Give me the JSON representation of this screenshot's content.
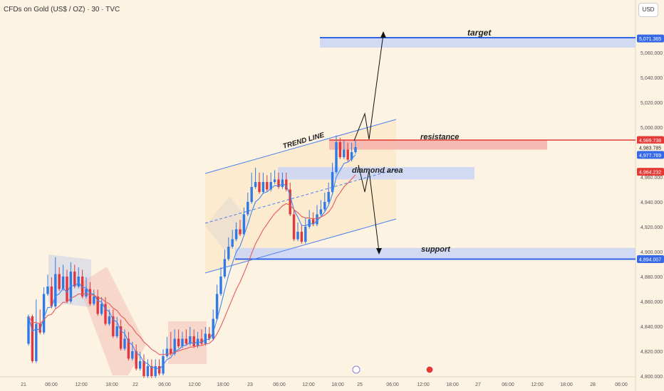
{
  "header": {
    "symbol_title": "CFDs on Gold (US$ / OZ) · 30 · TVC",
    "currency_button": "USD"
  },
  "colors": {
    "background": "#fdf3e3",
    "up_candle": "#2f7ae6",
    "down_candle": "#e0383e",
    "ema_fast": "#3f86f0",
    "ema_slow": "#e55b5b",
    "channel": "#4a7ff0",
    "resistance": "#e53935",
    "support": "#3064ea",
    "zone_fill": "#cdd6f4",
    "resistance_fill": "#f4b1ab",
    "tag_blue": "#3669e8",
    "tag_red": "#e53935"
  },
  "chart_data": {
    "type": "candlestick",
    "title": "CFDs on Gold (US$ / OZ) · 30 · TVC",
    "interval": "30",
    "ylim": [
      4800,
      5080
    ],
    "yticks": [
      "5,060.000",
      "5,040.000",
      "5,020.000",
      "5,000.000",
      "4,960.000",
      "4,940.000",
      "4,920.000",
      "4,900.000",
      "4,880.000",
      "4,860.000",
      "4,840.000",
      "4,820.000",
      "4,800.000"
    ],
    "ytick_values": [
      5060,
      5040,
      5020,
      5000,
      4960,
      4940,
      4920,
      4900,
      4880,
      4860,
      4840,
      4820,
      4800
    ],
    "xticks": [
      "21",
      "06:00",
      "12:00",
      "18:00",
      "22",
      "06:00",
      "12:00",
      "18:00",
      "23",
      "06:00",
      "12:00",
      "18:00",
      "25",
      "06:00",
      "12:00",
      "18:00",
      "27",
      "06:00",
      "12:00",
      "18:00",
      "28",
      "06:00"
    ],
    "price_tags": [
      {
        "label": "5,071.365",
        "value": 5071.365,
        "color": "blue"
      },
      {
        "label": "4,989.738",
        "value": 4989.738,
        "color": "red"
      },
      {
        "label": "4,983.785",
        "value": 4983.785,
        "color": "plain"
      },
      {
        "label": "4,977.769",
        "value": 4977.769,
        "color": "blue"
      },
      {
        "label": "4,964.232",
        "value": 4964.232,
        "color": "red"
      },
      {
        "label": "4,894.007",
        "value": 4894.007,
        "color": "blue"
      }
    ],
    "annotations": {
      "target": "target",
      "resistance": "resistance",
      "diamond": "diamond area",
      "support": "support",
      "trend_line": "TREND LINE"
    },
    "levels": {
      "target_low": 5064,
      "target_high": 5072,
      "resistance": 4989.738,
      "resistance_low": 4982,
      "diamond_low": 4958,
      "diamond_high": 4968,
      "support": 4894.007,
      "support_high": 4903
    },
    "candles_start": 4831,
    "candles": [
      [
        4826,
        4848,
        4812
      ],
      [
        4848,
        4812,
        4806
      ],
      [
        4812,
        4842,
        4860
      ],
      [
        4842,
        4835,
        4852
      ],
      [
        4835,
        4866,
        4870
      ],
      [
        4866,
        4872,
        4880
      ],
      [
        4872,
        4856,
        4878
      ],
      [
        4856,
        4882,
        4894
      ],
      [
        4882,
        4870,
        4886
      ],
      [
        4870,
        4880,
        4888
      ],
      [
        4880,
        4860,
        4884
      ],
      [
        4860,
        4884,
        4890
      ],
      [
        4884,
        4872,
        4888
      ],
      [
        4872,
        4880,
        4886
      ],
      [
        4880,
        4864,
        4884
      ],
      [
        4864,
        4870,
        4878
      ],
      [
        4870,
        4858,
        4874
      ],
      [
        4858,
        4864,
        4868
      ],
      [
        4864,
        4850,
        4868
      ],
      [
        4850,
        4858,
        4862
      ],
      [
        4858,
        4842,
        4862
      ],
      [
        4842,
        4848,
        4852
      ],
      [
        4848,
        4832,
        4852
      ],
      [
        4832,
        4840,
        4846
      ],
      [
        4840,
        4822,
        4844
      ],
      [
        4822,
        4830,
        4836
      ],
      [
        4830,
        4814,
        4834
      ],
      [
        4814,
        4820,
        4826
      ],
      [
        4820,
        4806,
        4824
      ],
      [
        4806,
        4812,
        4818
      ],
      [
        4812,
        4800,
        4816
      ],
      [
        4800,
        4808,
        4812
      ],
      [
        4808,
        4800,
        4812
      ],
      [
        4800,
        4808,
        4812
      ],
      [
        4808,
        4802,
        4812
      ],
      [
        4802,
        4816,
        4820
      ],
      [
        4816,
        4822,
        4830
      ],
      [
        4822,
        4818,
        4834
      ],
      [
        4818,
        4830,
        4836
      ],
      [
        4830,
        4824,
        4836
      ],
      [
        4824,
        4830,
        4834
      ],
      [
        4830,
        4826,
        4836
      ],
      [
        4826,
        4832,
        4838
      ],
      [
        4832,
        4824,
        4836
      ],
      [
        4824,
        4830,
        4834
      ],
      [
        4830,
        4826,
        4836
      ],
      [
        4826,
        4834,
        4838
      ],
      [
        4834,
        4830,
        4838
      ],
      [
        4830,
        4846,
        4852
      ],
      [
        4846,
        4866,
        4872
      ],
      [
        4866,
        4880,
        4886
      ],
      [
        4880,
        4894,
        4900
      ],
      [
        4894,
        4904,
        4910
      ],
      [
        4904,
        4910,
        4916
      ],
      [
        4910,
        4918,
        4922
      ],
      [
        4918,
        4914,
        4924
      ],
      [
        4914,
        4930,
        4934
      ],
      [
        4930,
        4940,
        4946
      ],
      [
        4940,
        4952,
        4962
      ],
      [
        4952,
        4956,
        4966
      ],
      [
        4956,
        4948,
        4962
      ],
      [
        4948,
        4956,
        4962
      ],
      [
        4956,
        4950,
        4960
      ],
      [
        4950,
        4956,
        4962
      ],
      [
        4956,
        4958,
        4964
      ],
      [
        4958,
        4952,
        4962
      ],
      [
        4952,
        4958,
        4962
      ],
      [
        4958,
        4950,
        4962
      ],
      [
        4950,
        4930,
        4954
      ],
      [
        4930,
        4910,
        4932
      ],
      [
        4910,
        4916,
        4922
      ],
      [
        4916,
        4908,
        4920
      ],
      [
        4908,
        4920,
        4926
      ],
      [
        4920,
        4926,
        4932
      ],
      [
        4926,
        4922,
        4930
      ],
      [
        4922,
        4930,
        4936
      ],
      [
        4930,
        4934,
        4940
      ],
      [
        4934,
        4940,
        4946
      ],
      [
        4940,
        4948,
        4954
      ],
      [
        4948,
        4964,
        4970
      ],
      [
        4964,
        4988,
        4992
      ],
      [
        4988,
        4976,
        4990
      ],
      [
        4976,
        4982,
        4988
      ],
      [
        4982,
        4974,
        4986
      ],
      [
        4974,
        4980,
        4986
      ],
      [
        4980,
        4984,
        4988
      ]
    ]
  }
}
